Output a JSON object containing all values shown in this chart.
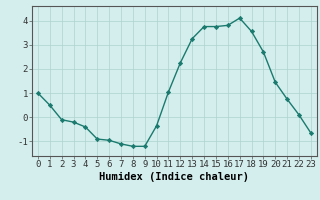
{
  "x": [
    0,
    1,
    2,
    3,
    4,
    5,
    6,
    7,
    8,
    9,
    10,
    11,
    12,
    13,
    14,
    15,
    16,
    17,
    18,
    19,
    20,
    21,
    22,
    23
  ],
  "y": [
    1.0,
    0.5,
    -0.1,
    -0.2,
    -0.4,
    -0.9,
    -0.95,
    -1.1,
    -1.2,
    -1.2,
    -0.35,
    1.05,
    2.25,
    3.25,
    3.75,
    3.75,
    3.8,
    4.1,
    3.55,
    2.7,
    1.45,
    0.75,
    0.1,
    -0.65
  ],
  "line_color": "#1a7a6e",
  "marker": "D",
  "marker_size": 2.2,
  "linewidth": 1.0,
  "xlabel": "Humidex (Indice chaleur)",
  "xlim": [
    -0.5,
    23.5
  ],
  "ylim": [
    -1.6,
    4.6
  ],
  "yticks": [
    -1,
    0,
    1,
    2,
    3,
    4
  ],
  "xticks": [
    0,
    1,
    2,
    3,
    4,
    5,
    6,
    7,
    8,
    9,
    10,
    11,
    12,
    13,
    14,
    15,
    16,
    17,
    18,
    19,
    20,
    21,
    22,
    23
  ],
  "xtick_labels": [
    "0",
    "1",
    "2",
    "3",
    "4",
    "5",
    "6",
    "7",
    "8",
    "9",
    "10",
    "11",
    "12",
    "13",
    "14",
    "15",
    "16",
    "17",
    "18",
    "19",
    "20",
    "21",
    "22",
    "23"
  ],
  "background_color": "#d4eeed",
  "grid_color": "#aed4d0",
  "tick_fontsize": 6.5,
  "xlabel_fontsize": 7.5
}
